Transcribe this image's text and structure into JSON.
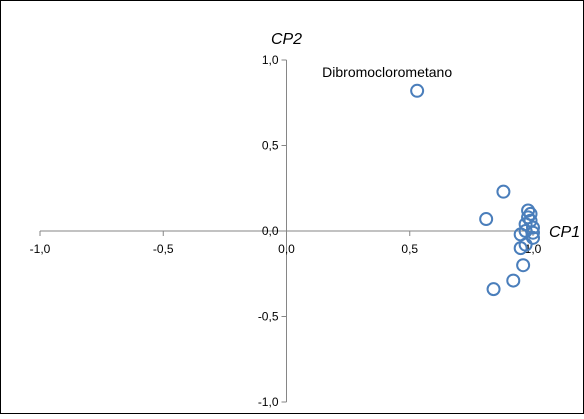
{
  "chart_data": {
    "type": "scatter",
    "xlabel": "CP1",
    "ylabel": "CP2",
    "xlim": [
      -1.0,
      1.0
    ],
    "ylim": [
      -1.0,
      1.0
    ],
    "x_ticks": [
      "-1,0",
      "-0,5",
      "0,0",
      "0,5",
      "1,0"
    ],
    "y_ticks": [
      "1,0",
      "0,5",
      "0,0",
      "-0,5",
      "-1,0"
    ],
    "grid": false,
    "legend": "none",
    "marker_color": "#4a7ebb",
    "series": [
      {
        "points": [
          {
            "x": 0.53,
            "y": 0.82
          },
          {
            "x": 0.88,
            "y": 0.23
          },
          {
            "x": 0.81,
            "y": 0.07
          },
          {
            "x": 0.84,
            "y": -0.34
          },
          {
            "x": 0.92,
            "y": -0.29
          },
          {
            "x": 0.96,
            "y": -0.2
          },
          {
            "x": 0.95,
            "y": -0.1
          },
          {
            "x": 0.95,
            "y": -0.02
          },
          {
            "x": 0.97,
            "y": 0.0
          },
          {
            "x": 0.97,
            "y": 0.04
          },
          {
            "x": 0.98,
            "y": 0.08
          },
          {
            "x": 0.98,
            "y": 0.12
          },
          {
            "x": 0.99,
            "y": 0.06
          },
          {
            "x": 1.0,
            "y": 0.02
          },
          {
            "x": 1.0,
            "y": -0.04
          },
          {
            "x": 0.97,
            "y": -0.08
          },
          {
            "x": 0.99,
            "y": 0.1
          },
          {
            "x": 1.0,
            "y": -0.01
          }
        ]
      }
    ],
    "annotations": [
      {
        "text": "Dibromoclorometano",
        "x": 0.53,
        "y": 0.82
      }
    ]
  }
}
